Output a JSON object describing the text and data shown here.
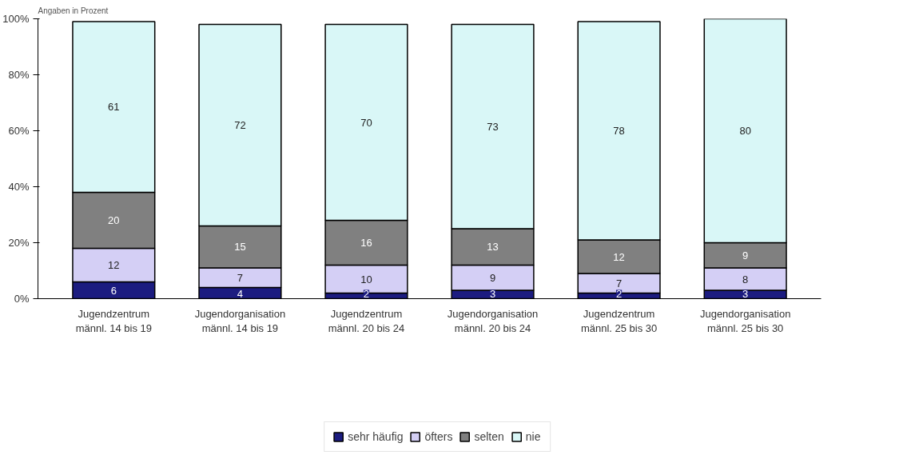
{
  "chart_data": {
    "type": "bar",
    "stacked": true,
    "annotations": [
      "Angaben in Prozent"
    ],
    "categories": [
      "Jugendzentrum\nmännl. 14 bis 19",
      "Jugendorganisation\nmännl. 14 bis 19",
      "Jugendzentrum\nmännl. 20 bis 24",
      "Jugendorganisation\nmännl. 20 bis 24",
      "Jugendzentrum\nmännl. 25 bis 30",
      "Jugendorganisation\nmännl. 25 bis 30"
    ],
    "series": [
      {
        "name": "sehr häufig",
        "color": "#1c1c80",
        "values": [
          6,
          4,
          2,
          3,
          2,
          3
        ]
      },
      {
        "name": "öfters",
        "color": "#d4cff5",
        "values": [
          12,
          7,
          10,
          9,
          7,
          8
        ]
      },
      {
        "name": "selten",
        "color": "#808080",
        "values": [
          20,
          15,
          16,
          13,
          12,
          9
        ]
      },
      {
        "name": "nie",
        "color": "#d9f7f7",
        "values": [
          61,
          72,
          70,
          73,
          78,
          80
        ]
      }
    ],
    "ylim": [
      0,
      100
    ],
    "yticks": [
      {
        "value": 0,
        "label": "0%"
      },
      {
        "value": 20,
        "label": "20%"
      },
      {
        "value": 40,
        "label": "40%"
      },
      {
        "value": 60,
        "label": "60%"
      },
      {
        "value": 80,
        "label": "80%"
      },
      {
        "value": 100,
        "label": "100%"
      }
    ],
    "data_labels": true,
    "grid": false,
    "legend": "bottom"
  }
}
